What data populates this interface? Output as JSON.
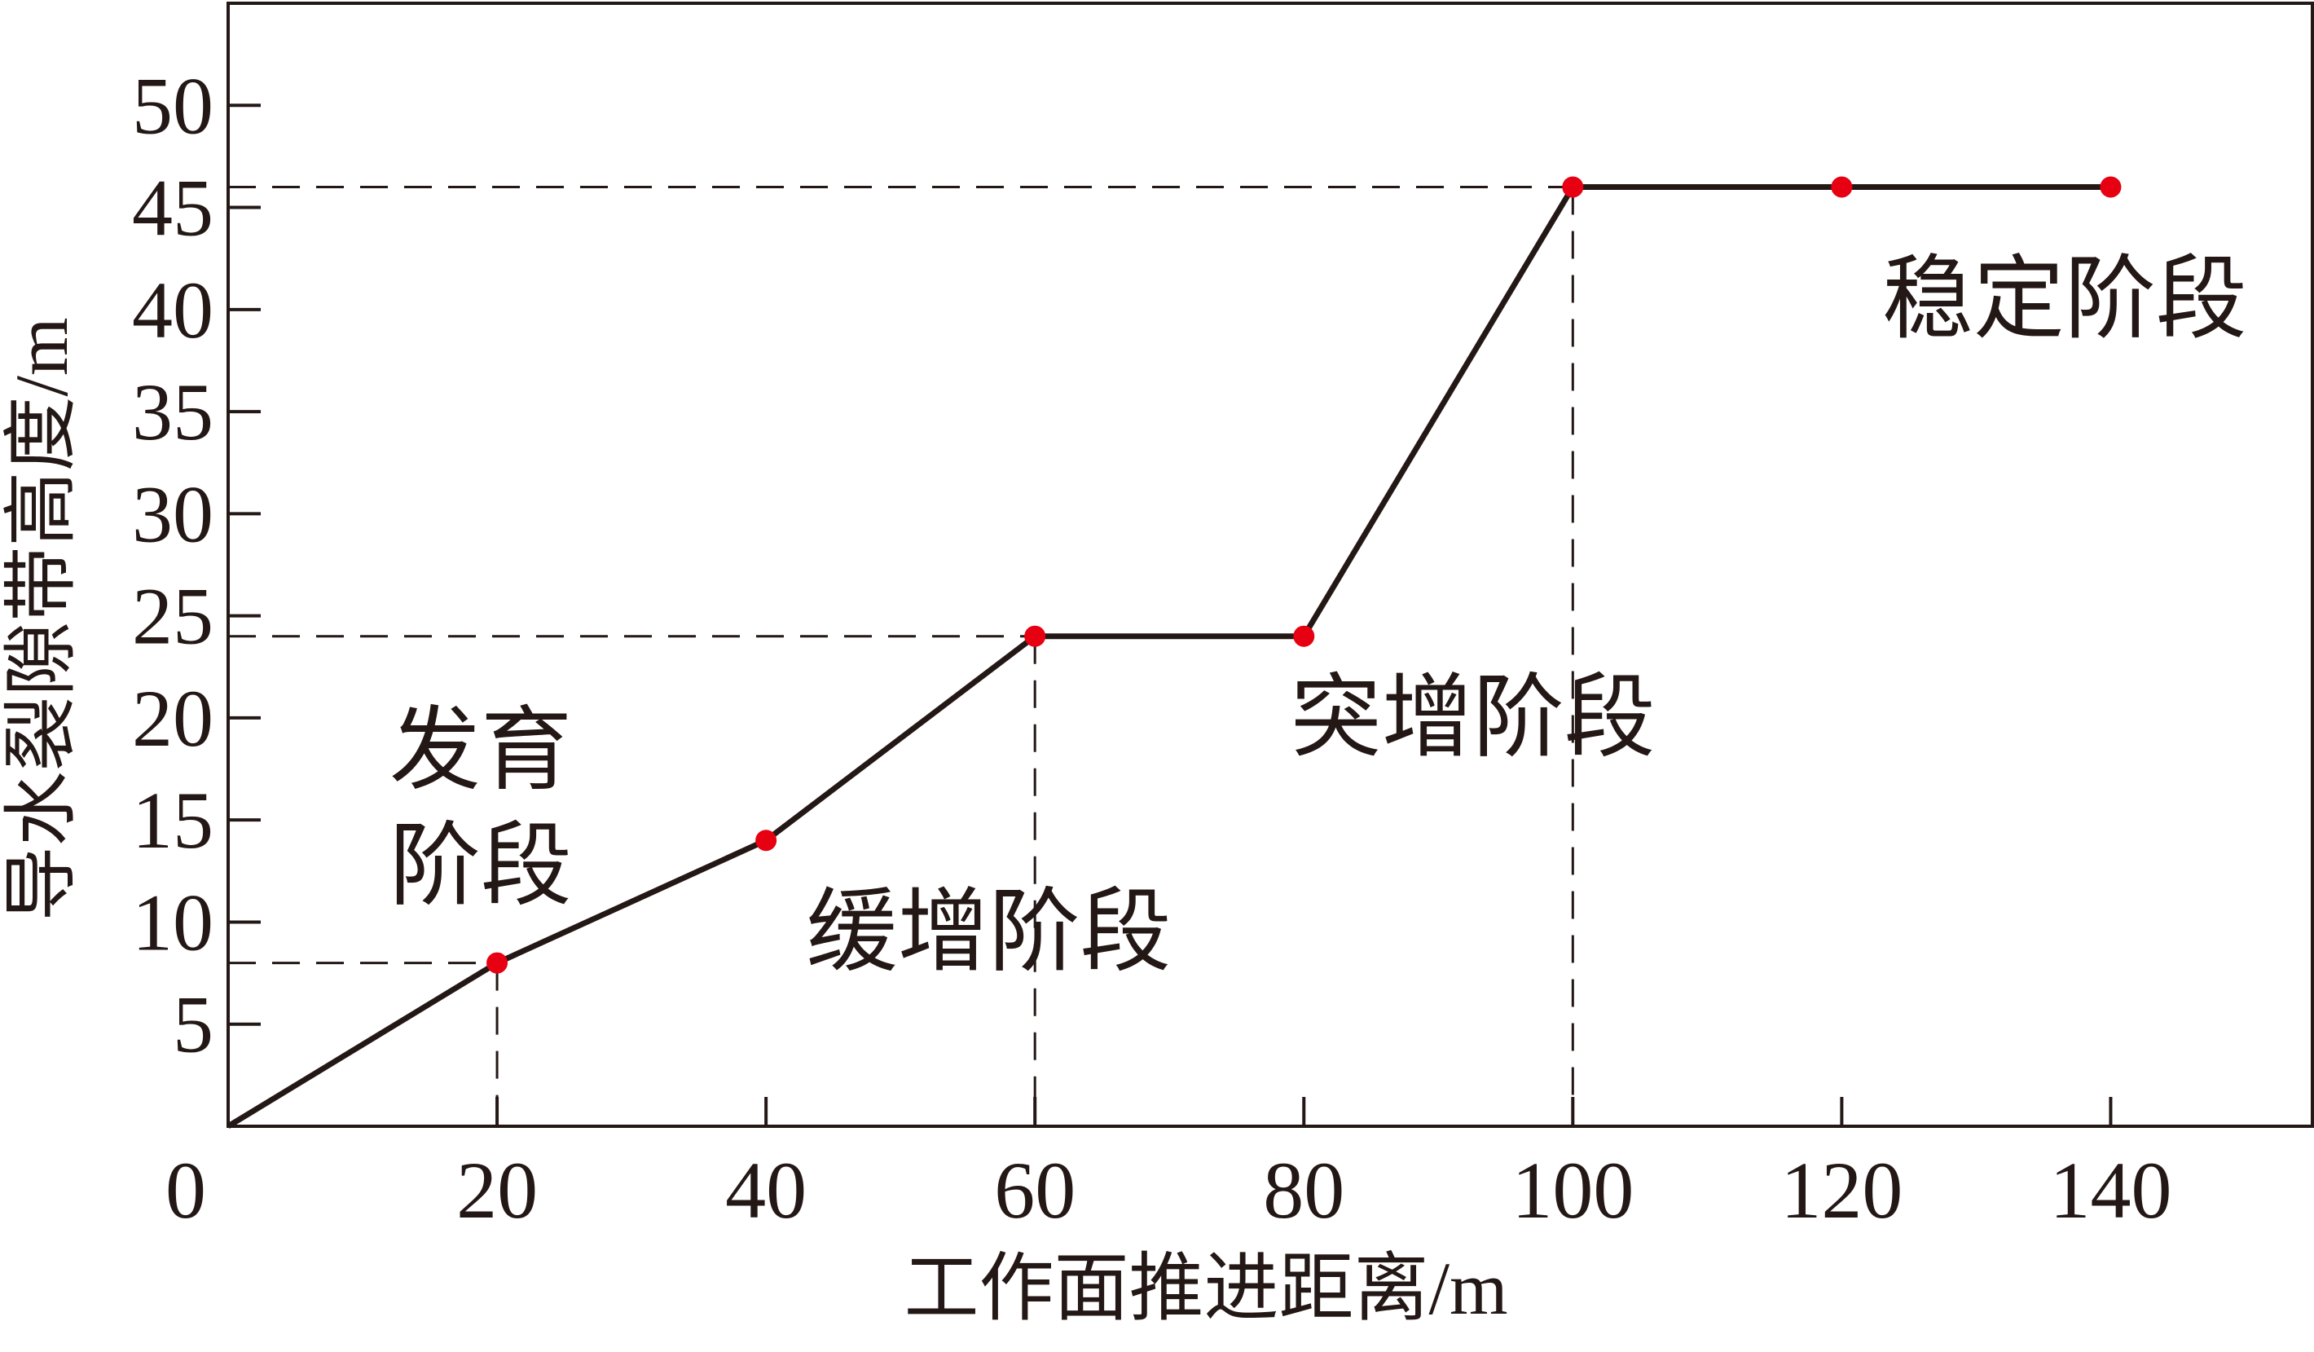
{
  "chart_data": {
    "type": "line",
    "xlabel": "工作面推进距离/m",
    "ylabel": "导水裂隙带高度/m",
    "xlim": [
      0,
      155
    ],
    "ylim": [
      0,
      55
    ],
    "x_ticks": [
      0,
      20,
      40,
      60,
      80,
      100,
      120,
      140
    ],
    "x_tick_labels": [
      "0",
      "20",
      "40",
      "60",
      "80",
      "100",
      "120",
      "140"
    ],
    "y_ticks": [
      5,
      10,
      15,
      20,
      25,
      30,
      35,
      40,
      45,
      50
    ],
    "y_tick_labels": [
      "5",
      "10",
      "15",
      "20",
      "25",
      "30",
      "35",
      "40",
      "45",
      "50"
    ],
    "grid": false,
    "line_color": "#231815",
    "marker_color": "#e60012",
    "series": [
      {
        "x": [
          0,
          20,
          40,
          60,
          80,
          100,
          120,
          140
        ],
        "y": [
          0,
          8,
          14,
          24,
          24,
          46,
          46,
          46
        ],
        "markers_x": [
          20,
          40,
          60,
          80,
          100,
          120,
          140
        ],
        "markers_y": [
          8,
          14,
          24,
          24,
          46,
          46,
          46
        ]
      }
    ],
    "reference_lines": [
      {
        "x": 20,
        "y": 8
      },
      {
        "x": 60,
        "y": 24
      },
      {
        "x": 100,
        "y": 46
      }
    ],
    "annotations": [
      {
        "id": "development",
        "lines": [
          "发育",
          "阶段"
        ],
        "x": 12,
        "y": 16.9
      },
      {
        "id": "slow-increase",
        "lines": [
          "缓增阶段"
        ],
        "x": 43,
        "y": 8
      },
      {
        "id": "sudden-increase",
        "lines": [
          "突增阶段"
        ],
        "x": 79,
        "y": 18.5
      },
      {
        "id": "stable",
        "lines": [
          "稳定阶段"
        ],
        "x": 123,
        "y": 39
      }
    ]
  }
}
